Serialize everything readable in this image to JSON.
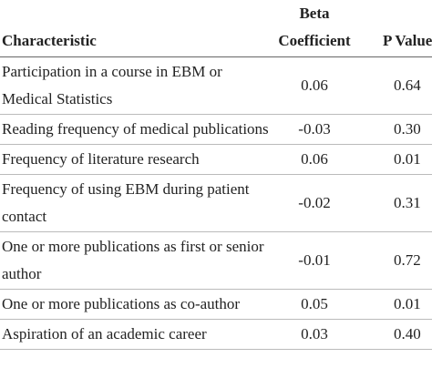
{
  "table": {
    "header": [
      "Characteristic",
      "Beta Coefficient",
      "P Value"
    ],
    "rows": [
      [
        "Participation in a course in EBM or Medical Statistics",
        "0.06",
        "0.64"
      ],
      [
        "Reading frequency of medical publications",
        "-0.03",
        "0.30"
      ],
      [
        "Frequency of literature research",
        "0.06",
        "0.01"
      ],
      [
        "Frequency of using EBM during patient contact",
        "-0.02",
        "0.31"
      ],
      [
        "One or more publications as first or senior author",
        "-0.01",
        "0.72"
      ],
      [
        "One or more publications as co-author",
        "0.05",
        "0.01"
      ],
      [
        "Aspiration of an academic career",
        "0.03",
        "0.40"
      ]
    ]
  }
}
